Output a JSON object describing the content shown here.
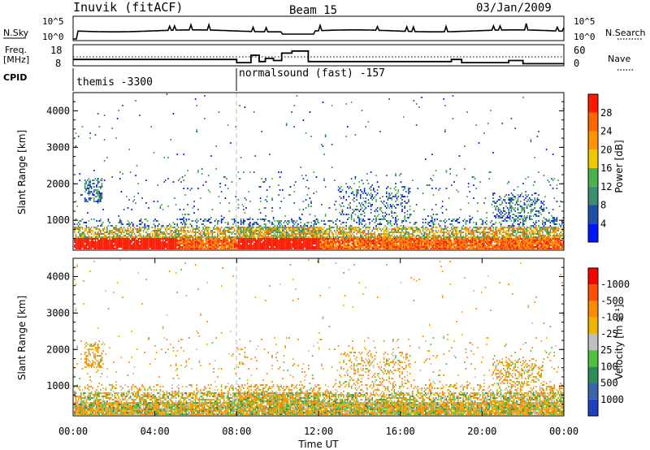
{
  "header": {
    "station": "Inuvik (fitACF)",
    "beam": "Beam 15",
    "date": "03/Jan/2009"
  },
  "chart_data": [
    {
      "type": "line",
      "name": "noise-panel",
      "labels": {
        "left": "N.Sky",
        "right": "N.Search",
        "ltop": "10^5",
        "lbot": "10^0",
        "rtop": "10^5",
        "rbot": "10^0"
      }
    },
    {
      "type": "line",
      "name": "freq-panel",
      "labels": {
        "left_top": "Freq.",
        "left_unit": "[MHz]",
        "right": "Nave",
        "ltick_top": "18",
        "ltick_bot": "8",
        "rtick_top": "60",
        "rtick_bot": "0"
      },
      "x_hours": [
        0,
        8,
        8.7,
        9.1,
        9.4,
        9.8,
        10.2,
        10.7,
        11.5,
        18.5,
        19,
        21.3,
        22,
        24
      ],
      "freq_mhz": [
        11,
        9.5,
        13,
        10,
        11.5,
        10.5,
        14,
        15,
        10,
        11,
        9.5,
        10.5,
        9,
        9
      ]
    },
    {
      "type": "table",
      "name": "cpid-panel",
      "label": "CPID",
      "segments": [
        {
          "start_hour": 0,
          "end_hour": 8,
          "text": "themis -3300"
        },
        {
          "start_hour": 8,
          "end_hour": 24,
          "text": "normalsound (fast) -157"
        }
      ]
    },
    {
      "type": "heatmap",
      "name": "power-panel",
      "ylabel": "Slant Range [km]",
      "yticks": [
        "1000",
        "2000",
        "3000",
        "4000"
      ],
      "ylim": [
        180,
        4500
      ],
      "xlim": [
        0,
        24
      ],
      "colorbar": {
        "label": "Power [dB]",
        "ticks": [
          "4",
          "8",
          "12",
          "16",
          "20",
          "24",
          "28"
        ],
        "colors": [
          "#0016ff",
          "#1f4fa8",
          "#3c8d6e",
          "#4cb04c",
          "#f0c800",
          "#ff9600",
          "#ff6600",
          "#ff1a00"
        ]
      }
    },
    {
      "type": "heatmap",
      "name": "velocity-panel",
      "ylabel": "Slant Range [km]",
      "yticks": [
        "1000",
        "2000",
        "3000",
        "4000"
      ],
      "ylim": [
        180,
        4500
      ],
      "xlim": [
        0,
        24
      ],
      "xlabel": "Time UT",
      "xticks": [
        "00:00",
        "04:00",
        "08:00",
        "12:00",
        "16:00",
        "20:00",
        "00:00"
      ],
      "colorbar": {
        "label": "Velocity [m s⁻¹]",
        "ticks": [
          "1000",
          "500",
          "100",
          "25",
          "-25",
          "-100",
          "-500",
          "-1000"
        ],
        "colors": [
          "#2040c0",
          "#3c64a8",
          "#2e8c5a",
          "#50c040",
          "#c0c0c0",
          "#f0b400",
          "#ff8c00",
          "#ff5000",
          "#ff0000"
        ]
      }
    }
  ]
}
